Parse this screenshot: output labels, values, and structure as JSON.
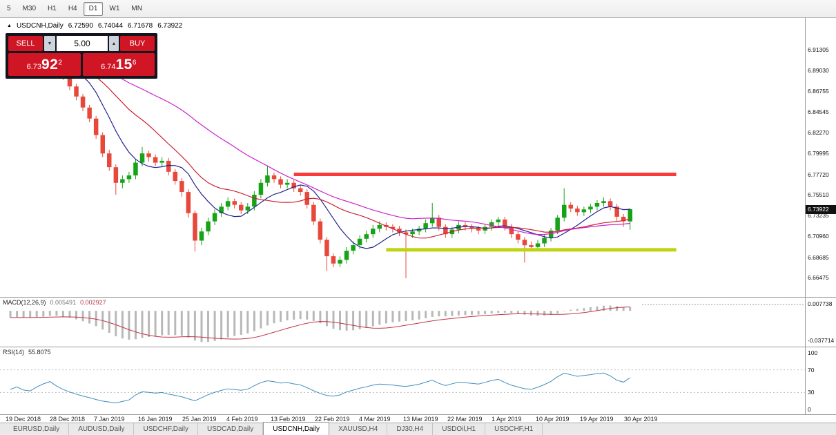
{
  "toolbar": {
    "timeframes": [
      "5",
      "M30",
      "H1",
      "H4",
      "D1",
      "W1",
      "MN"
    ],
    "active_timeframe": "D1"
  },
  "icons": {
    "chart_collapse": "▲",
    "dropdown_arrow": "▼",
    "spin_up": "▲"
  },
  "chart_header": {
    "symbol": "USDCNH,Daily",
    "open": "6.72590",
    "high": "6.74044",
    "low": "6.71678",
    "close": "6.73922"
  },
  "trade_panel": {
    "sell_label": "SELL",
    "buy_label": "BUY",
    "volume": "5.00",
    "sell_price": {
      "prefix": "6.73",
      "big": "92",
      "sup": "2"
    },
    "buy_price": {
      "prefix": "6.74",
      "big": "15",
      "sup": "6"
    }
  },
  "price_axis": {
    "labels": [
      "6.91305",
      "6.89030",
      "6.86755",
      "6.84545",
      "6.82270",
      "6.79995",
      "6.77720",
      "6.75510",
      "6.73235",
      "6.70960",
      "6.68685",
      "6.66475"
    ],
    "current": "6.73922"
  },
  "macd_panel": {
    "name": "MACD(12,26,9)",
    "main_value": "0.005491",
    "signal_value": "0.002927",
    "axis_max": "0.007738",
    "axis_min": "-0.037714"
  },
  "rsi_panel": {
    "name": "RSI(14)",
    "value": "55.8075",
    "axis": [
      "100",
      "70",
      "30",
      "0"
    ]
  },
  "date_axis": [
    "19 Dec 2018",
    "28 Dec 2018",
    "7 Jan 2019",
    "16 Jan 2019",
    "25 Jan 2019",
    "4 Feb 2019",
    "13 Feb 2019",
    "22 Feb 2019",
    "4 Mar 2019",
    "13 Mar 2019",
    "22 Mar 2019",
    "1 Apr 2019",
    "10 Apr 2019",
    "19 Apr 2019",
    "30 Apr 2019"
  ],
  "tabs": {
    "items": [
      "EURUSD,Daily",
      "AUDUSD,Daily",
      "USDCHF,Daily",
      "USDCAD,Daily",
      "USDCNH,Daily",
      "XAUUSD,H4",
      "DJ30,H4",
      "USDOil,H1",
      "USDCHF,H1"
    ],
    "active": "USDCNH,Daily"
  },
  "colors": {
    "bull": "#17a317",
    "bear": "#e8483c",
    "ma_fast": "#22228f",
    "ma_mid": "#cc2233",
    "ma_slow": "#cc22cc",
    "resistance": "#fa3b3b",
    "support": "#bfd40f",
    "macd_hist": "#b8b8b8",
    "macd_signal": "#c03344",
    "rsi_line": "#3d8dbd",
    "price_badge_bg": "#111111",
    "trade_red": "#d01525"
  },
  "chart_data": {
    "type": "candlestick",
    "symbol": "USDCNH",
    "timeframe": "Daily",
    "current_price": 6.73922,
    "last_ohlc": [
      6.7259,
      6.74044,
      6.71678,
      6.73922
    ],
    "candles": [
      [
        6.894,
        6.901,
        6.891,
        6.898
      ],
      [
        6.898,
        6.905,
        6.895,
        6.902
      ],
      [
        6.902,
        6.905,
        6.89,
        6.893
      ],
      [
        6.893,
        6.896,
        6.886,
        6.89
      ],
      [
        6.89,
        6.9,
        6.887,
        6.897
      ],
      [
        6.897,
        6.906,
        6.894,
        6.903
      ],
      [
        6.903,
        6.918,
        6.9,
        6.908
      ],
      [
        6.908,
        6.911,
        6.892,
        6.896
      ],
      [
        6.896,
        6.899,
        6.88,
        6.884
      ],
      [
        6.884,
        6.887,
        6.869,
        6.873
      ],
      [
        6.873,
        6.876,
        6.858,
        6.862
      ],
      [
        6.862,
        6.865,
        6.846,
        6.85
      ],
      [
        6.85,
        6.853,
        6.834,
        6.838
      ],
      [
        6.838,
        6.841,
        6.816,
        6.82
      ],
      [
        6.82,
        6.823,
        6.796,
        6.8
      ],
      [
        6.8,
        6.804,
        6.781,
        6.785
      ],
      [
        6.785,
        6.788,
        6.755,
        6.768
      ],
      [
        6.768,
        6.776,
        6.762,
        6.772
      ],
      [
        6.772,
        6.78,
        6.768,
        6.776
      ],
      [
        6.776,
        6.794,
        6.772,
        6.79
      ],
      [
        6.79,
        6.807,
        6.786,
        6.8
      ],
      [
        6.8,
        6.803,
        6.791,
        6.796
      ],
      [
        6.796,
        6.799,
        6.786,
        6.79
      ],
      [
        6.79,
        6.796,
        6.786,
        6.792
      ],
      [
        6.792,
        6.795,
        6.776,
        6.78
      ],
      [
        6.78,
        6.783,
        6.766,
        6.77
      ],
      [
        6.77,
        6.773,
        6.753,
        6.758
      ],
      [
        6.758,
        6.761,
        6.73,
        6.735
      ],
      [
        6.735,
        6.738,
        6.693,
        6.705
      ],
      [
        6.705,
        6.719,
        6.7,
        6.715
      ],
      [
        6.715,
        6.73,
        6.711,
        6.726
      ],
      [
        6.726,
        6.739,
        6.722,
        6.735
      ],
      [
        6.735,
        6.746,
        6.731,
        6.742
      ],
      [
        6.742,
        6.752,
        6.738,
        6.748
      ],
      [
        6.748,
        6.751,
        6.74,
        6.744
      ],
      [
        6.744,
        6.747,
        6.734,
        6.738
      ],
      [
        6.738,
        6.746,
        6.734,
        6.742
      ],
      [
        6.742,
        6.759,
        6.738,
        6.755
      ],
      [
        6.755,
        6.772,
        6.751,
        6.768
      ],
      [
        6.768,
        6.786,
        6.764,
        6.776
      ],
      [
        6.776,
        6.779,
        6.768,
        6.772
      ],
      [
        6.772,
        6.775,
        6.762,
        6.766
      ],
      [
        6.766,
        6.772,
        6.762,
        6.768
      ],
      [
        6.768,
        6.771,
        6.758,
        6.762
      ],
      [
        6.762,
        6.765,
        6.754,
        6.758
      ],
      [
        6.758,
        6.761,
        6.74,
        6.744
      ],
      [
        6.744,
        6.747,
        6.722,
        6.726
      ],
      [
        6.726,
        6.729,
        6.702,
        6.706
      ],
      [
        6.706,
        6.709,
        6.672,
        6.688
      ],
      [
        6.688,
        6.691,
        6.676,
        6.68
      ],
      [
        6.68,
        6.688,
        6.676,
        6.684
      ],
      [
        6.684,
        6.698,
        6.68,
        6.694
      ],
      [
        6.694,
        6.704,
        6.69,
        6.7
      ],
      [
        6.7,
        6.711,
        6.696,
        6.707
      ],
      [
        6.707,
        6.716,
        6.703,
        6.712
      ],
      [
        6.712,
        6.722,
        6.708,
        6.718
      ],
      [
        6.718,
        6.726,
        6.714,
        6.722
      ],
      [
        6.722,
        6.725,
        6.716,
        6.72
      ],
      [
        6.72,
        6.723,
        6.714,
        6.718
      ],
      [
        6.718,
        6.721,
        6.71,
        6.714
      ],
      [
        6.714,
        6.717,
        6.664,
        6.712
      ],
      [
        6.712,
        6.718,
        6.708,
        6.715
      ],
      [
        6.715,
        6.721,
        6.711,
        6.718
      ],
      [
        6.718,
        6.728,
        6.714,
        6.724
      ],
      [
        6.724,
        6.746,
        6.72,
        6.73
      ],
      [
        6.73,
        6.733,
        6.716,
        6.72
      ],
      [
        6.72,
        6.723,
        6.708,
        6.712
      ],
      [
        6.712,
        6.72,
        6.708,
        6.717
      ],
      [
        6.717,
        6.726,
        6.713,
        6.722
      ],
      [
        6.722,
        6.725,
        6.716,
        6.72
      ],
      [
        6.72,
        6.723,
        6.714,
        6.718
      ],
      [
        6.718,
        6.721,
        6.712,
        6.716
      ],
      [
        6.716,
        6.723,
        6.712,
        6.72
      ],
      [
        6.72,
        6.728,
        6.716,
        6.725
      ],
      [
        6.725,
        6.731,
        6.721,
        6.728
      ],
      [
        6.728,
        6.731,
        6.716,
        6.72
      ],
      [
        6.72,
        6.723,
        6.708,
        6.712
      ],
      [
        6.712,
        6.715,
        6.702,
        6.706
      ],
      [
        6.706,
        6.709,
        6.681,
        6.7
      ],
      [
        6.7,
        6.704,
        6.694,
        6.698
      ],
      [
        6.698,
        6.706,
        6.694,
        6.702
      ],
      [
        6.702,
        6.711,
        6.698,
        6.708
      ],
      [
        6.708,
        6.719,
        6.704,
        6.716
      ],
      [
        6.716,
        6.733,
        6.712,
        6.73
      ],
      [
        6.73,
        6.762,
        6.726,
        6.744
      ],
      [
        6.744,
        6.747,
        6.736,
        6.74
      ],
      [
        6.74,
        6.743,
        6.732,
        6.736
      ],
      [
        6.736,
        6.742,
        6.732,
        6.739
      ],
      [
        6.739,
        6.745,
        6.735,
        6.742
      ],
      [
        6.742,
        6.749,
        6.738,
        6.746
      ],
      [
        6.746,
        6.752,
        6.742,
        6.748
      ],
      [
        6.748,
        6.751,
        6.738,
        6.742
      ],
      [
        6.742,
        6.745,
        6.726,
        6.731
      ],
      [
        6.731,
        6.734,
        6.72,
        6.726
      ],
      [
        6.7259,
        6.74044,
        6.71678,
        6.73922
      ]
    ],
    "prehistory_closes": [
      6.956,
      6.95,
      6.944,
      6.94,
      6.946,
      6.952,
      6.948,
      6.942,
      6.936,
      6.93,
      6.934,
      6.938,
      6.932,
      6.926,
      6.922,
      6.928,
      6.934,
      6.93,
      6.924,
      6.918,
      6.914,
      6.918,
      6.924,
      6.92,
      6.914,
      6.908,
      6.912,
      6.918,
      6.914,
      6.908,
      6.904,
      6.908,
      6.912,
      6.908,
      6.902,
      6.898,
      6.902,
      6.906,
      6.902,
      6.898
    ],
    "moving_averages": [
      {
        "period": 8,
        "color_key": "ma_fast"
      },
      {
        "period": 17,
        "color_key": "ma_mid"
      },
      {
        "period": 34,
        "color_key": "ma_slow"
      }
    ],
    "hlines": [
      {
        "price": 6.7772,
        "from": 43,
        "to": 101,
        "width": 5,
        "color_key": "resistance"
      },
      {
        "price": 6.695,
        "from": 57,
        "to": 101,
        "width": 5,
        "color_key": "support"
      }
    ],
    "macd": {
      "fast": 12,
      "slow": 26,
      "signal": 9,
      "range": [
        -0.037714,
        0.007738
      ],
      "current_main": 0.005491,
      "current_signal": 0.002927
    },
    "rsi": {
      "period": 14,
      "current": 55.8075,
      "levels": [
        70,
        30
      ],
      "range": [
        0,
        100
      ]
    }
  }
}
